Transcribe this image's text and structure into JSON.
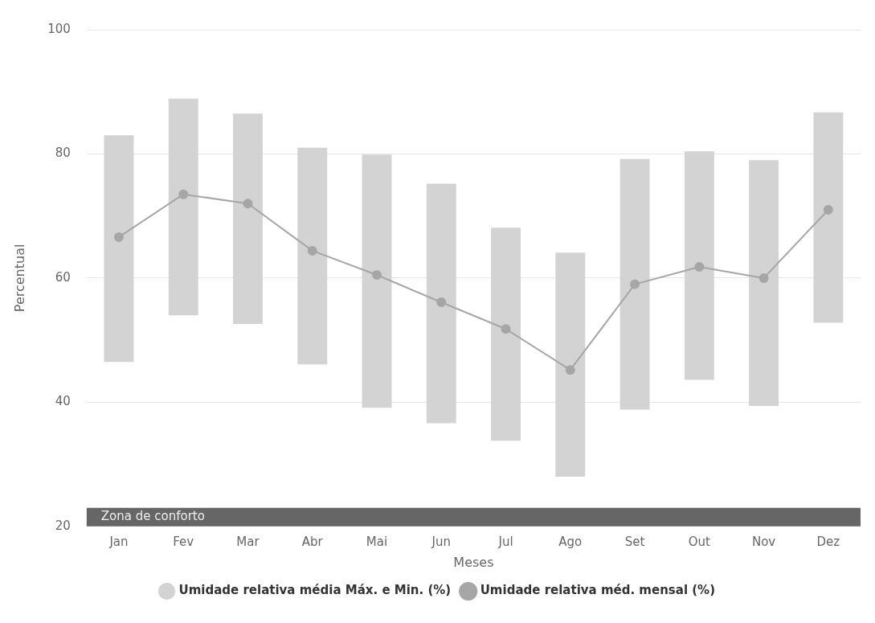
{
  "chart_data": {
    "type": "bar",
    "xlabel": "Meses",
    "ylabel": "Percentual",
    "categories": [
      "Jan",
      "Fev",
      "Mar",
      "Abr",
      "Mai",
      "Jun",
      "Jul",
      "Ago",
      "Set",
      "Out",
      "Nov",
      "Dez"
    ],
    "series": [
      {
        "name": "Umidade relativa média Máx. e Min. (%)",
        "color": "#d3d3d3",
        "base": [
          46.5,
          54.0,
          52.6,
          46.1,
          39.1,
          36.6,
          33.8,
          28.0,
          38.8,
          43.6,
          39.4,
          52.8
        ],
        "values": [
          36.5,
          34.9,
          33.9,
          34.9,
          40.8,
          38.6,
          34.3,
          36.1,
          40.4,
          36.8,
          39.6,
          33.9
        ]
      },
      {
        "name": "Umidade relativa méd. mensal (%)",
        "type": "line",
        "color": "#a6a6a6",
        "marker": "circle",
        "values": [
          66.6,
          73.5,
          72.0,
          64.4,
          60.5,
          56.1,
          51.8,
          45.2,
          59.0,
          61.8,
          60.0,
          71.0
        ]
      }
    ],
    "ylim": [
      20,
      100
    ],
    "yticks": [
      20,
      40,
      60,
      80,
      100
    ],
    "grid": "y",
    "legend": "bottom",
    "bands": [
      {
        "axis": "y",
        "from": 20,
        "to": 23,
        "label": "Zona de conforto",
        "color": "#666666"
      }
    ]
  }
}
